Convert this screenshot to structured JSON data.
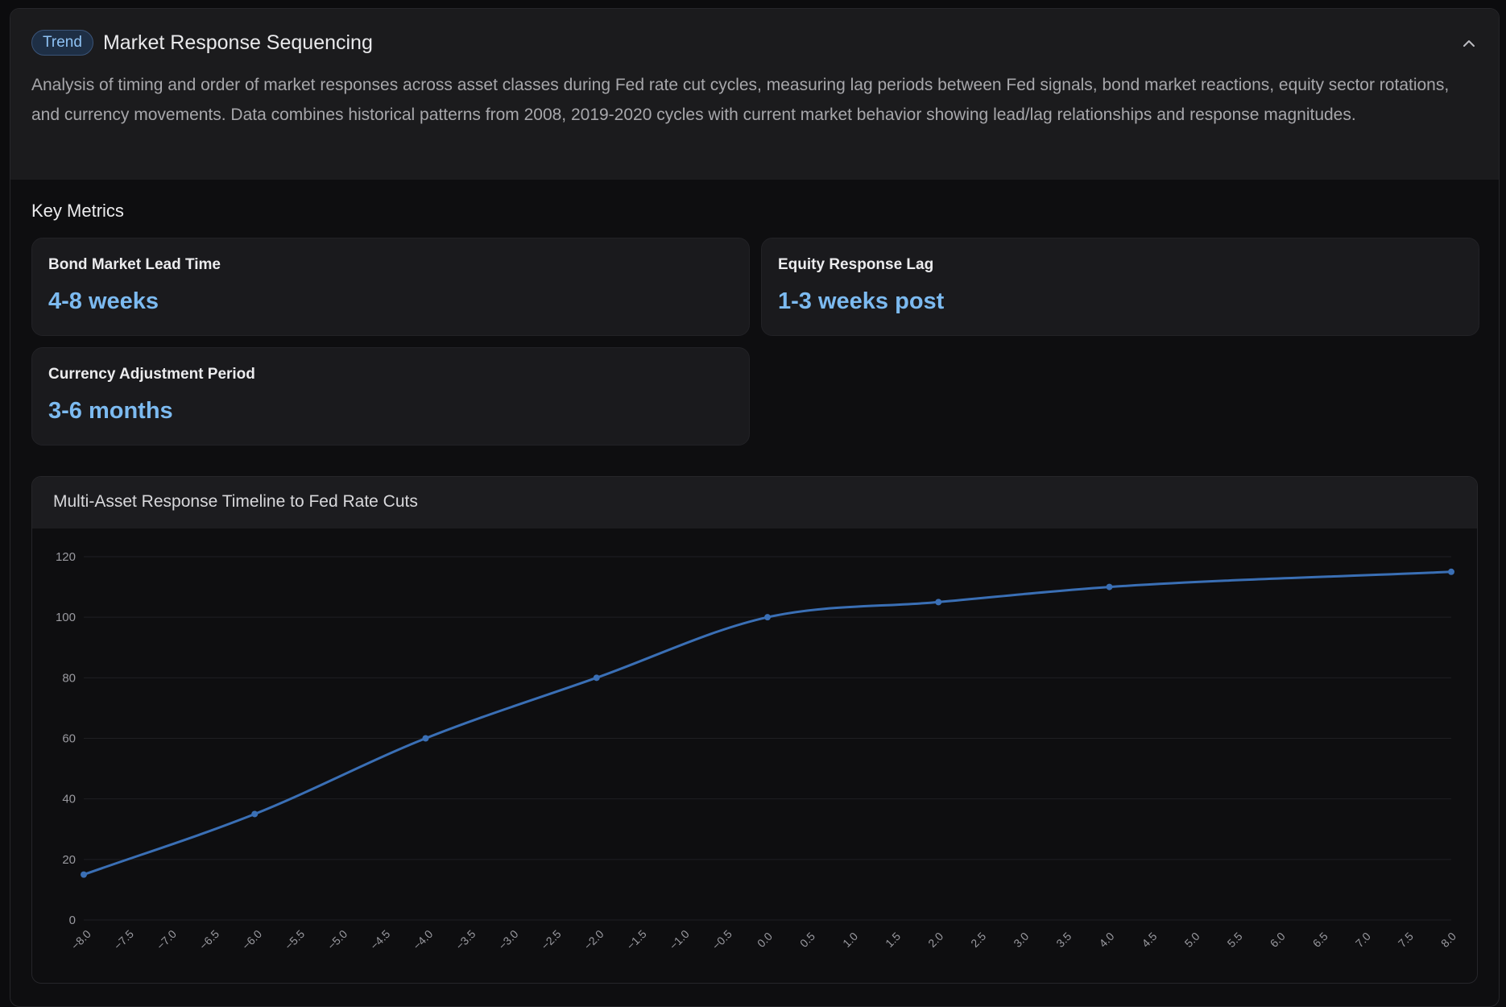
{
  "header": {
    "badge": "Trend",
    "title": "Market Response Sequencing",
    "collapse_icon": "chevron-up-icon",
    "description": "Analysis of timing and order of market responses across asset classes during Fed rate cut cycles, measuring lag periods between Fed signals, bond market reactions, equity sector rotations, and currency movements. Data combines historical patterns from 2008, 2019-2020 cycles with current market behavior showing lead/lag relationships and response magnitudes."
  },
  "key_metrics": {
    "title": "Key Metrics",
    "items": [
      {
        "label": "Bond Market Lead Time",
        "value": "4-8 weeks"
      },
      {
        "label": "Equity Response Lag",
        "value": "1-3 weeks post"
      },
      {
        "label": "Currency Adjustment Period",
        "value": "3-6 months"
      }
    ]
  },
  "colors": {
    "accent": "#7cbaf0",
    "line": "#3a6fb5",
    "badge_bg": "#1e2f45"
  },
  "chart_data": {
    "type": "line",
    "title": "Multi-Asset Response Timeline to Fed Rate Cuts",
    "xlabel": "",
    "ylabel": "",
    "xlim": [
      -8,
      8
    ],
    "ylim": [
      0,
      120
    ],
    "x_ticks": [
      "-8.0",
      "-7.5",
      "-7.0",
      "-6.5",
      "-6.0",
      "-5.5",
      "-5.0",
      "-4.5",
      "-4.0",
      "-3.5",
      "-3.0",
      "-2.5",
      "-2.0",
      "-1.5",
      "-1.0",
      "-0.5",
      "0.0",
      "0.5",
      "1.0",
      "1.5",
      "2.0",
      "2.5",
      "3.0",
      "3.5",
      "4.0",
      "4.5",
      "5.0",
      "5.5",
      "6.0",
      "6.5",
      "7.0",
      "7.5",
      "8.0"
    ],
    "y_ticks": [
      0,
      20,
      40,
      60,
      80,
      100,
      120
    ],
    "grid": true,
    "series": [
      {
        "x": [
          -8,
          -6,
          -4,
          -2,
          0,
          2,
          4,
          8
        ],
        "values": [
          15,
          35,
          60,
          80,
          100,
          105,
          110,
          115
        ]
      }
    ]
  }
}
